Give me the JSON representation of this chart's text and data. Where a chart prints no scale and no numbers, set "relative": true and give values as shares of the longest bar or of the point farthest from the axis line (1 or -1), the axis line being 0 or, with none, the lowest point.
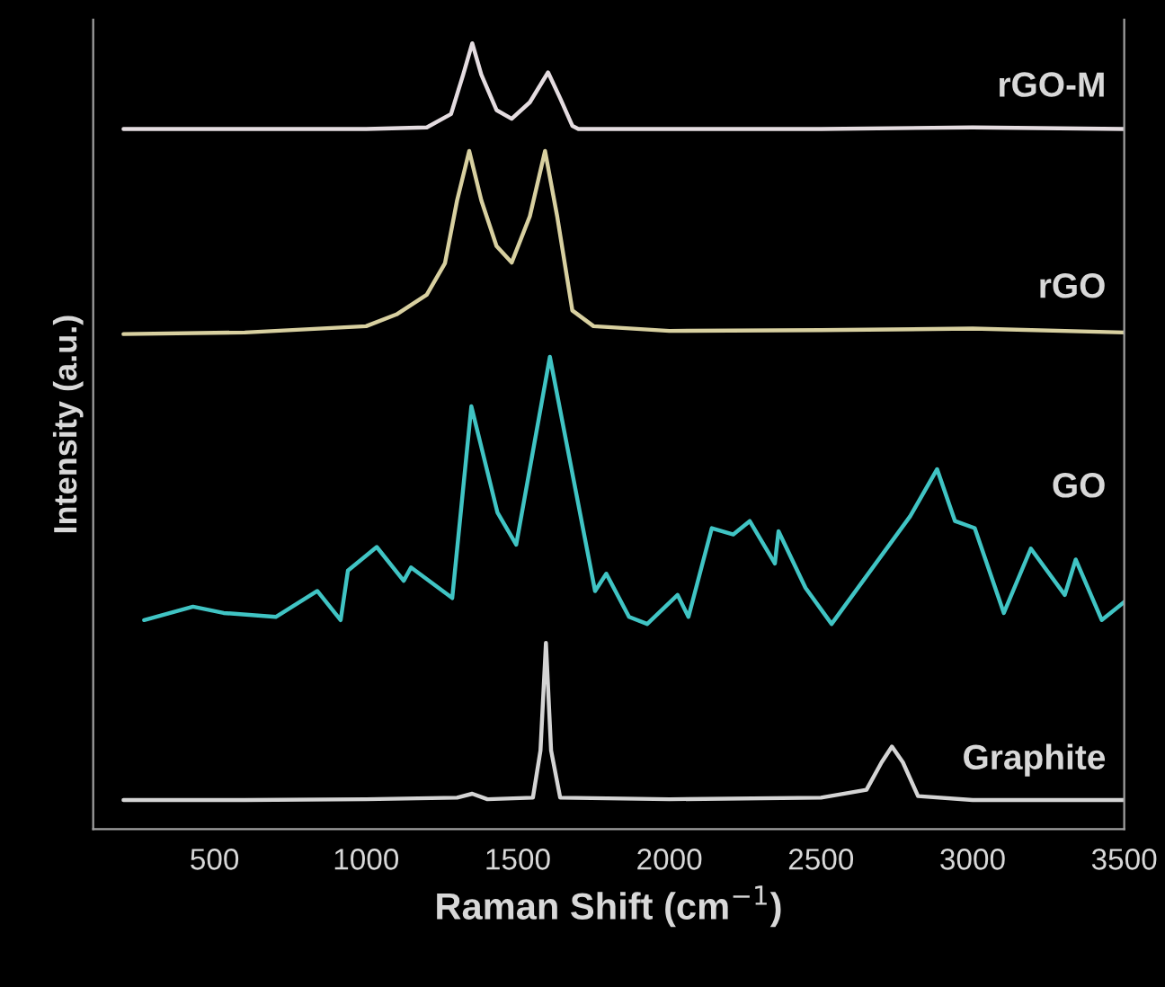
{
  "chart_data": {
    "type": "line",
    "relative": true,
    "xlabel": "Raman Shift (cm$^{−1}$)",
    "ylabel": "Intensity (a.u.)",
    "xlim": [
      100,
      3500
    ],
    "xticks": [
      500,
      1000,
      1500,
      2000,
      2500,
      3000,
      3500
    ],
    "tick_labels": "x",
    "grid": false,
    "legend": false,
    "line_style": "solid",
    "marker": "none",
    "series": [
      {
        "name": "rGO-M",
        "color": "#e4dce0",
        "x": [
          200,
          600,
          1000,
          1200,
          1280,
          1320,
          1350,
          1380,
          1430,
          1480,
          1540,
          1600,
          1640,
          1680,
          1700,
          2000,
          2500,
          3000,
          3500
        ],
        "values": [
          0.891,
          0.891,
          0.891,
          0.893,
          0.91,
          0.96,
          1.0,
          0.96,
          0.915,
          0.904,
          0.925,
          0.963,
          0.93,
          0.895,
          0.891,
          0.891,
          0.891,
          0.893,
          0.891
        ]
      },
      {
        "name": "rGO",
        "color": "#d8d0a0",
        "x": [
          200,
          600,
          1000,
          1100,
          1200,
          1260,
          1300,
          1340,
          1380,
          1430,
          1480,
          1540,
          1590,
          1630,
          1680,
          1750,
          2000,
          2500,
          3000,
          3500
        ],
        "values": [
          0.63,
          0.632,
          0.64,
          0.655,
          0.68,
          0.72,
          0.8,
          0.863,
          0.8,
          0.742,
          0.721,
          0.78,
          0.863,
          0.78,
          0.66,
          0.64,
          0.634,
          0.635,
          0.637,
          0.632
        ]
      },
      {
        "name": "GO",
        "color": "#40c4c4",
        "x": [
          268,
          429,
          530,
          702,
          839,
          916,
          940,
          1035,
          1124,
          1148,
          1284,
          1347,
          1433,
          1495,
          1606,
          1755,
          1792,
          1867,
          1927,
          2027,
          2063,
          2140,
          2211,
          2265,
          2348,
          2360,
          2449,
          2535,
          2794,
          2883,
          2942,
          3007,
          3103,
          3192,
          3304,
          3340,
          3426,
          3500
        ],
        "values": [
          0.266,
          0.283,
          0.275,
          0.27,
          0.303,
          0.266,
          0.329,
          0.359,
          0.316,
          0.333,
          0.294,
          0.538,
          0.403,
          0.362,
          0.601,
          0.303,
          0.325,
          0.27,
          0.261,
          0.298,
          0.27,
          0.383,
          0.375,
          0.392,
          0.338,
          0.379,
          0.307,
          0.261,
          0.398,
          0.458,
          0.392,
          0.383,
          0.275,
          0.357,
          0.298,
          0.343,
          0.266,
          0.289
        ]
      },
      {
        "name": "Graphite",
        "color": "#d4d4d4",
        "x": [
          200,
          600,
          1000,
          1300,
          1350,
          1400,
          1550,
          1575,
          1593,
          1610,
          1640,
          2000,
          2500,
          2650,
          2700,
          2734,
          2770,
          2820,
          3000,
          3500
        ],
        "values": [
          0.037,
          0.037,
          0.038,
          0.04,
          0.045,
          0.038,
          0.04,
          0.1,
          0.237,
          0.1,
          0.04,
          0.038,
          0.04,
          0.05,
          0.085,
          0.105,
          0.085,
          0.042,
          0.037,
          0.037
        ]
      }
    ]
  }
}
